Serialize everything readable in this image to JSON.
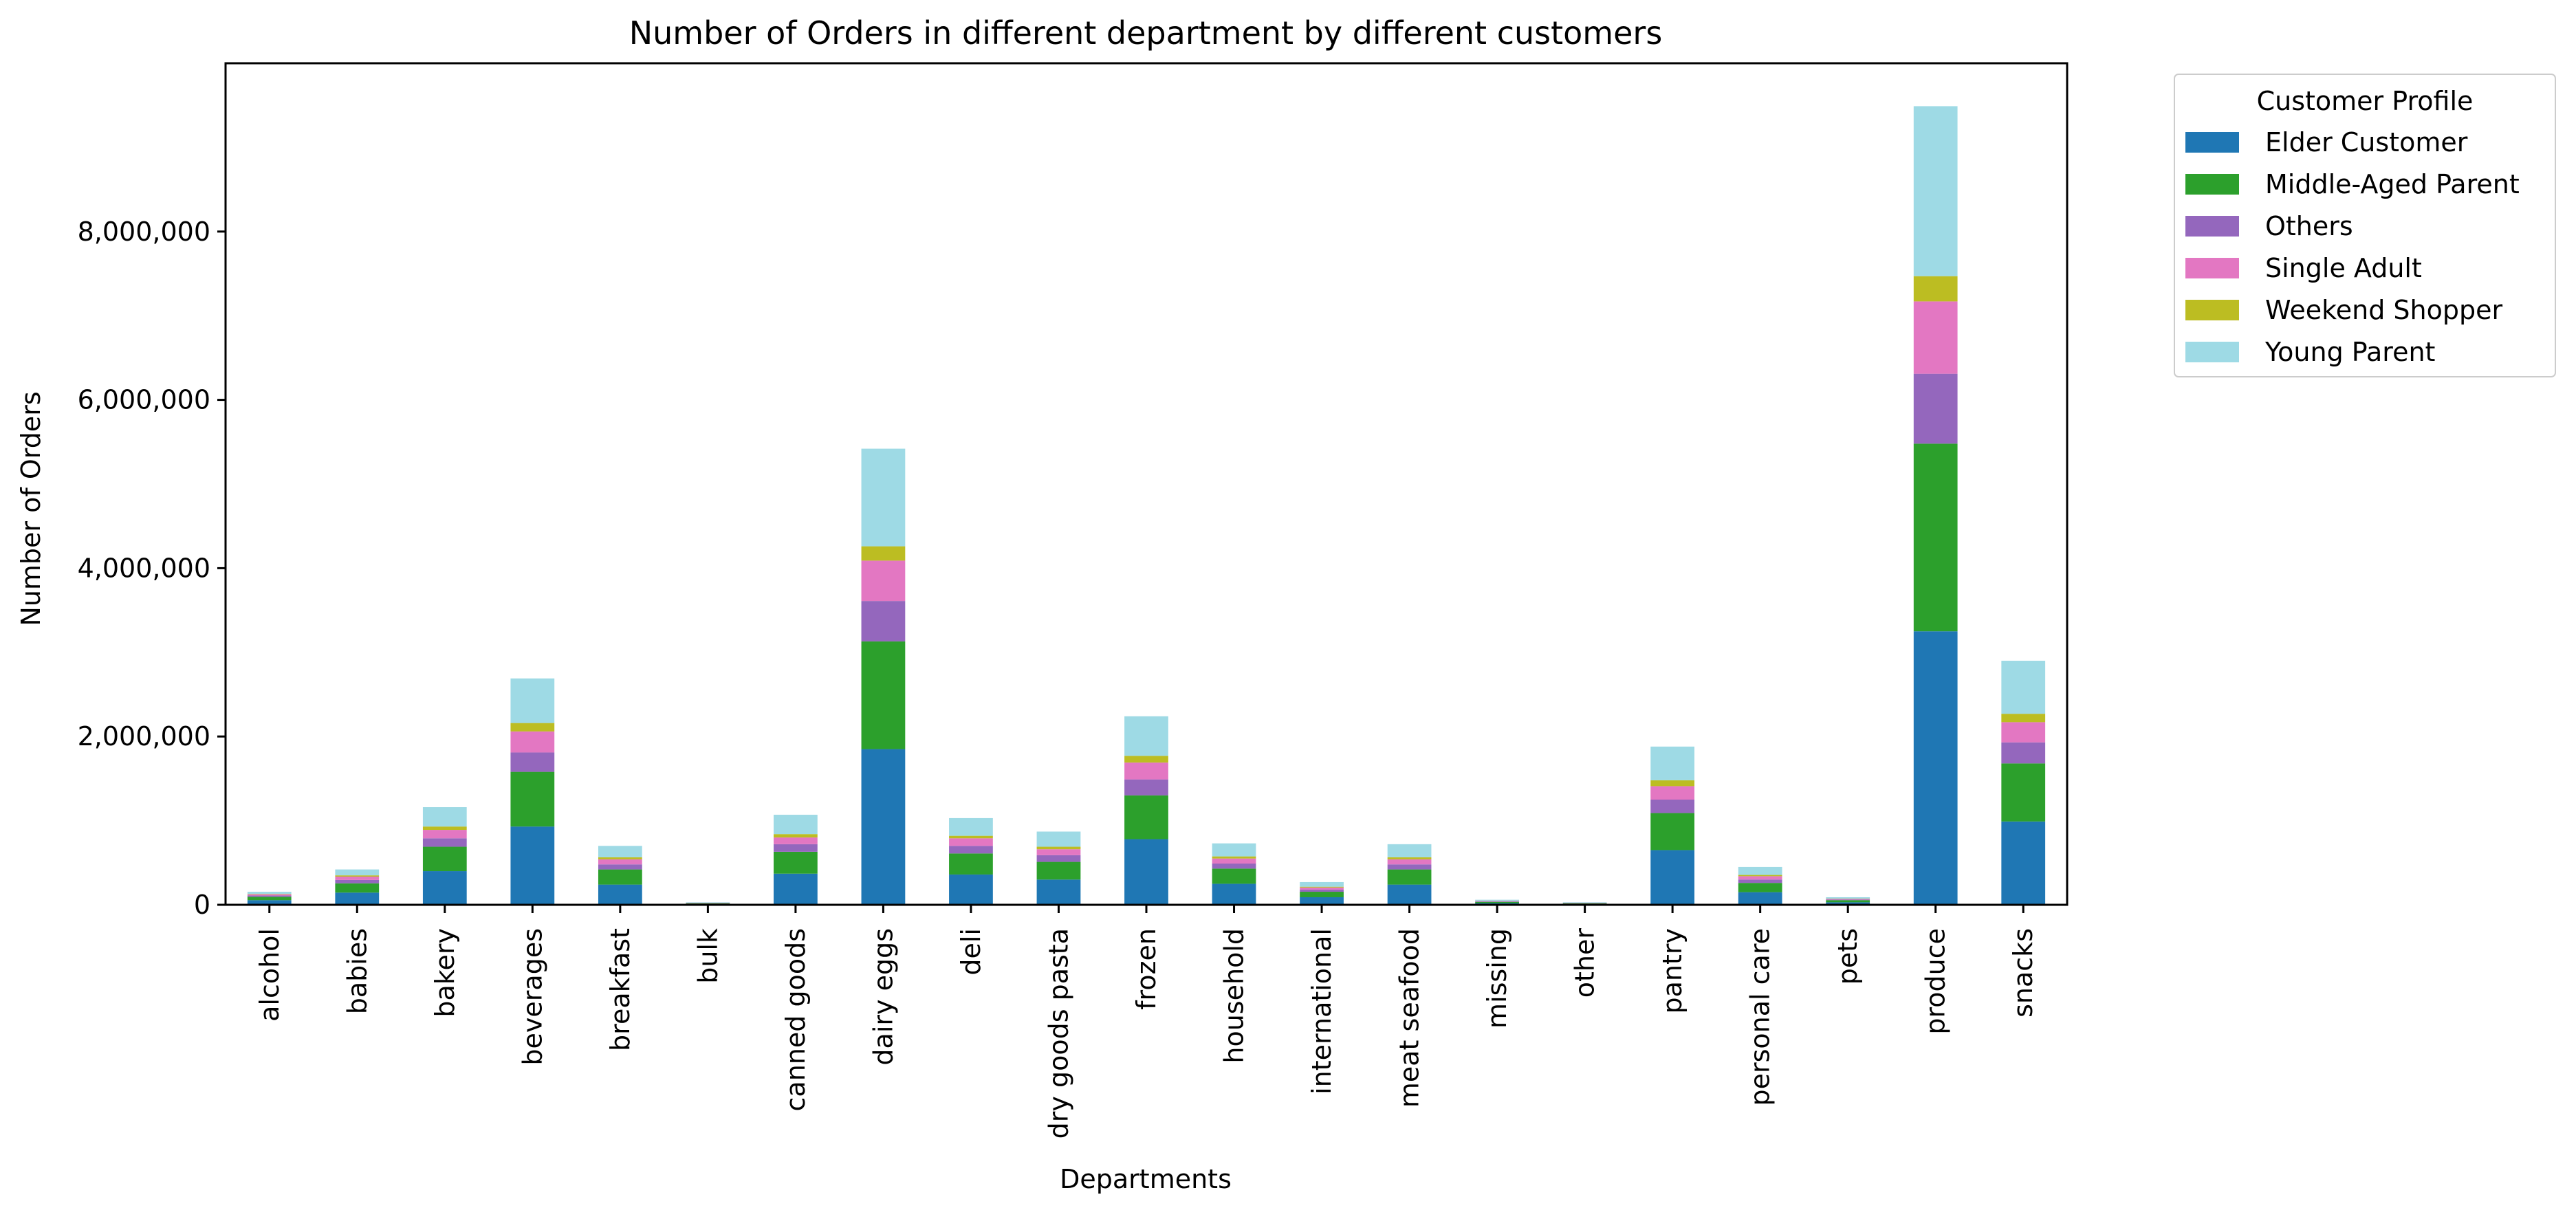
{
  "chart_data": {
    "type": "bar",
    "stacked": true,
    "title": "Number of Orders in different department by different customers",
    "xlabel": "Departments",
    "ylabel": "Number of Orders",
    "ylim": [
      0,
      10000000
    ],
    "yticks": [
      0,
      2000000,
      4000000,
      6000000,
      8000000
    ],
    "ytick_labels": [
      "0",
      "2,000,000",
      "4,000,000",
      "6,000,000",
      "8,000,000"
    ],
    "grid": false,
    "legend_position": "outside-top-right",
    "legend_title": "Customer Profile",
    "categories": [
      "alcohol",
      "babies",
      "bakery",
      "beverages",
      "breakfast",
      "bulk",
      "canned goods",
      "dairy eggs",
      "deli",
      "dry goods pasta",
      "frozen",
      "household",
      "international",
      "meat seafood",
      "missing",
      "other",
      "pantry",
      "personal care",
      "pets",
      "produce",
      "snacks"
    ],
    "series": [
      {
        "name": "Elder Customer",
        "color": "#1f77b4",
        "values": [
          55000,
          145000,
          400000,
          930000,
          240000,
          10000,
          370000,
          1850000,
          360000,
          300000,
          780000,
          250000,
          90000,
          240000,
          20000,
          10000,
          650000,
          150000,
          30000,
          3250000,
          990000
        ]
      },
      {
        "name": "Middle-Aged Parent",
        "color": "#2ca02c",
        "values": [
          40000,
          110000,
          290000,
          650000,
          180000,
          8000,
          260000,
          1280000,
          250000,
          210000,
          520000,
          180000,
          65000,
          180000,
          15000,
          7000,
          440000,
          110000,
          25000,
          2230000,
          690000
        ]
      },
      {
        "name": "Others",
        "color": "#9467bd",
        "values": [
          15000,
          40000,
          100000,
          230000,
          60000,
          3000,
          90000,
          480000,
          90000,
          80000,
          190000,
          60000,
          25000,
          60000,
          5000,
          3000,
          160000,
          40000,
          8000,
          830000,
          250000
        ]
      },
      {
        "name": "Single Adult",
        "color": "#e377c2",
        "values": [
          15000,
          40000,
          100000,
          250000,
          60000,
          3000,
          80000,
          480000,
          90000,
          70000,
          200000,
          60000,
          25000,
          60000,
          5000,
          3000,
          160000,
          40000,
          7000,
          860000,
          240000
        ]
      },
      {
        "name": "Weekend Shopper",
        "color": "#bcbd22",
        "values": [
          5000,
          15000,
          40000,
          100000,
          25000,
          1000,
          40000,
          170000,
          30000,
          30000,
          80000,
          25000,
          10000,
          25000,
          2000,
          1000,
          70000,
          15000,
          3000,
          300000,
          100000
        ]
      },
      {
        "name": "Young Parent",
        "color": "#9edae5",
        "values": [
          25000,
          70000,
          230000,
          530000,
          135000,
          5000,
          230000,
          1160000,
          210000,
          180000,
          470000,
          155000,
          55000,
          155000,
          13000,
          6000,
          400000,
          95000,
          17000,
          2020000,
          630000
        ]
      }
    ]
  }
}
